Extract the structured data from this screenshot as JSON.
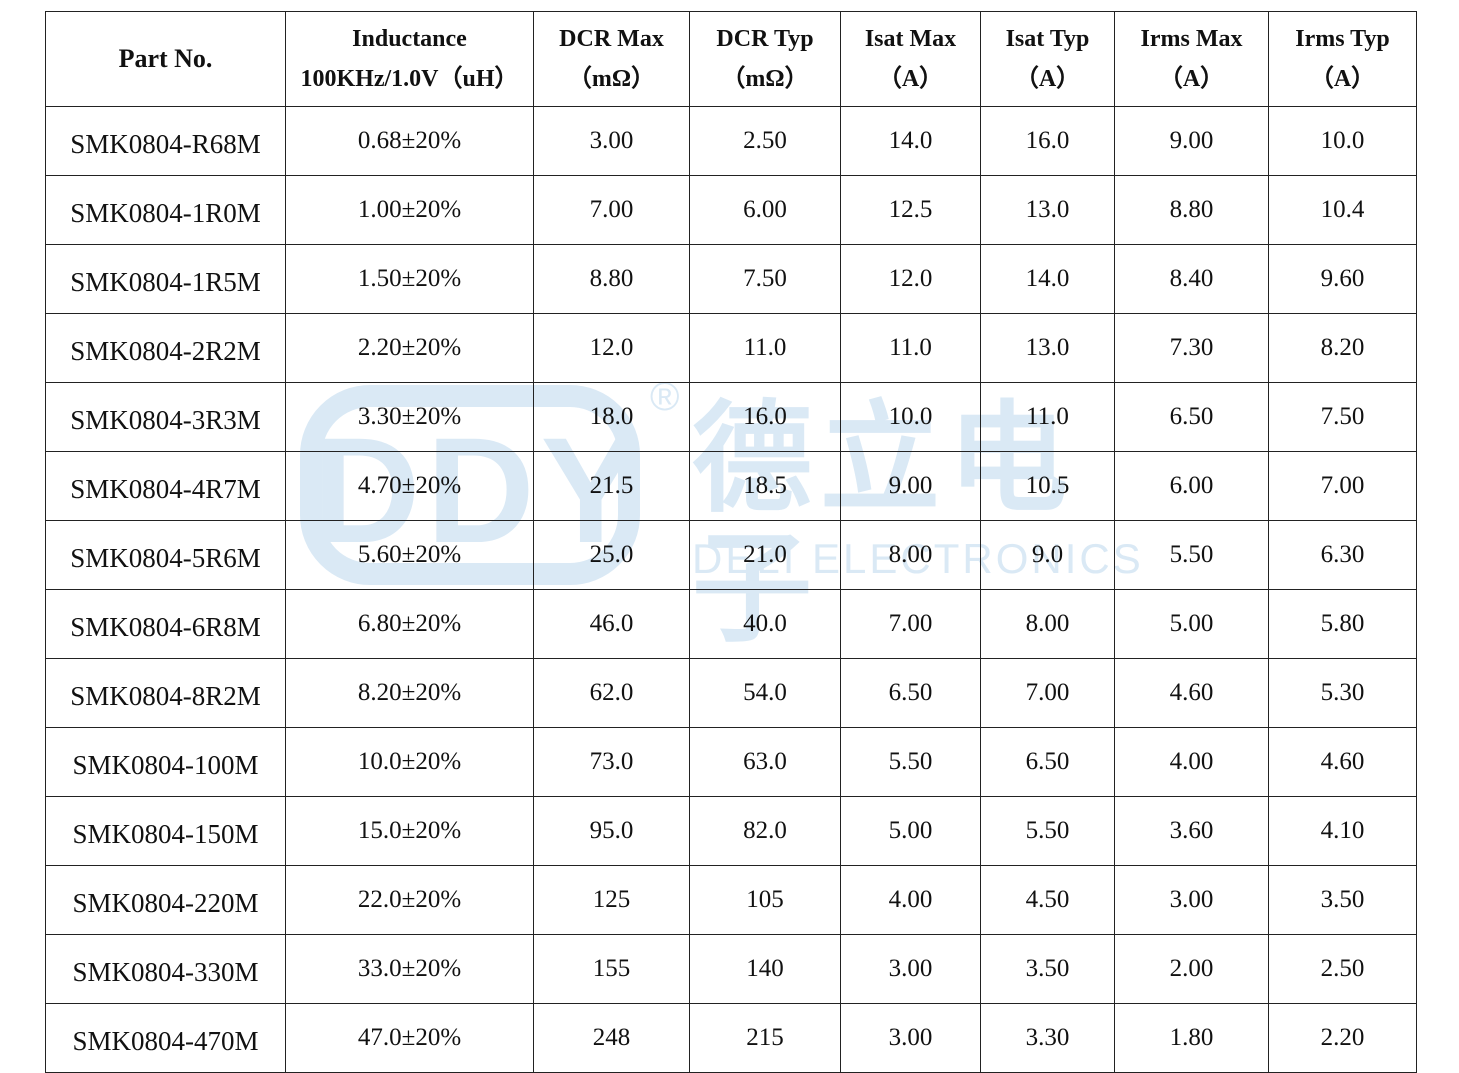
{
  "watermark": {
    "logo_letters": "DDY",
    "registered_mark": "®",
    "company_cn": "德立电子",
    "company_en": "DELI ELECTRONICS"
  },
  "table": {
    "headers": [
      {
        "line1": "Part No.",
        "line2": ""
      },
      {
        "line1": "Inductance",
        "line2": "100KHz/1.0V（uH）"
      },
      {
        "line1": "DCR Max",
        "line2": "（mΩ）"
      },
      {
        "line1": "DCR Typ",
        "line2": "（mΩ）"
      },
      {
        "line1": "Isat Max",
        "line2": "（A）"
      },
      {
        "line1": "Isat Typ",
        "line2": "（A）"
      },
      {
        "line1": "Irms Max",
        "line2": "（A）"
      },
      {
        "line1": "Irms Typ",
        "line2": "（A）"
      }
    ],
    "rows": [
      [
        "SMK0804-R68M",
        "0.68±20%",
        "3.00",
        "2.50",
        "14.0",
        "16.0",
        "9.00",
        "10.0"
      ],
      [
        "SMK0804-1R0M",
        "1.00±20%",
        "7.00",
        "6.00",
        "12.5",
        "13.0",
        "8.80",
        "10.4"
      ],
      [
        "SMK0804-1R5M",
        "1.50±20%",
        "8.80",
        "7.50",
        "12.0",
        "14.0",
        "8.40",
        "9.60"
      ],
      [
        "SMK0804-2R2M",
        "2.20±20%",
        "12.0",
        "11.0",
        "11.0",
        "13.0",
        "7.30",
        "8.20"
      ],
      [
        "SMK0804-3R3M",
        "3.30±20%",
        "18.0",
        "16.0",
        "10.0",
        "11.0",
        "6.50",
        "7.50"
      ],
      [
        "SMK0804-4R7M",
        "4.70±20%",
        "21.5",
        "18.5",
        "9.00",
        "10.5",
        "6.00",
        "7.00"
      ],
      [
        "SMK0804-5R6M",
        "5.60±20%",
        "25.0",
        "21.0",
        "8.00",
        "9.0",
        "5.50",
        "6.30"
      ],
      [
        "SMK0804-6R8M",
        "6.80±20%",
        "46.0",
        "40.0",
        "7.00",
        "8.00",
        "5.00",
        "5.80"
      ],
      [
        "SMK0804-8R2M",
        "8.20±20%",
        "62.0",
        "54.0",
        "6.50",
        "7.00",
        "4.60",
        "5.30"
      ],
      [
        "SMK0804-100M",
        "10.0±20%",
        "73.0",
        "63.0",
        "5.50",
        "6.50",
        "4.00",
        "4.60"
      ],
      [
        "SMK0804-150M",
        "15.0±20%",
        "95.0",
        "82.0",
        "5.00",
        "5.50",
        "3.60",
        "4.10"
      ],
      [
        "SMK0804-220M",
        "22.0±20%",
        "125",
        "105",
        "4.00",
        "4.50",
        "3.00",
        "3.50"
      ],
      [
        "SMK0804-330M",
        "33.0±20%",
        "155",
        "140",
        "3.00",
        "3.50",
        "2.00",
        "2.50"
      ],
      [
        "SMK0804-470M",
        "47.0±20%",
        "248",
        "215",
        "3.00",
        "3.30",
        "1.80",
        "2.20"
      ]
    ]
  },
  "colors": {
    "watermark": "#d6e7f4",
    "border": "#222222",
    "text": "#111111"
  }
}
